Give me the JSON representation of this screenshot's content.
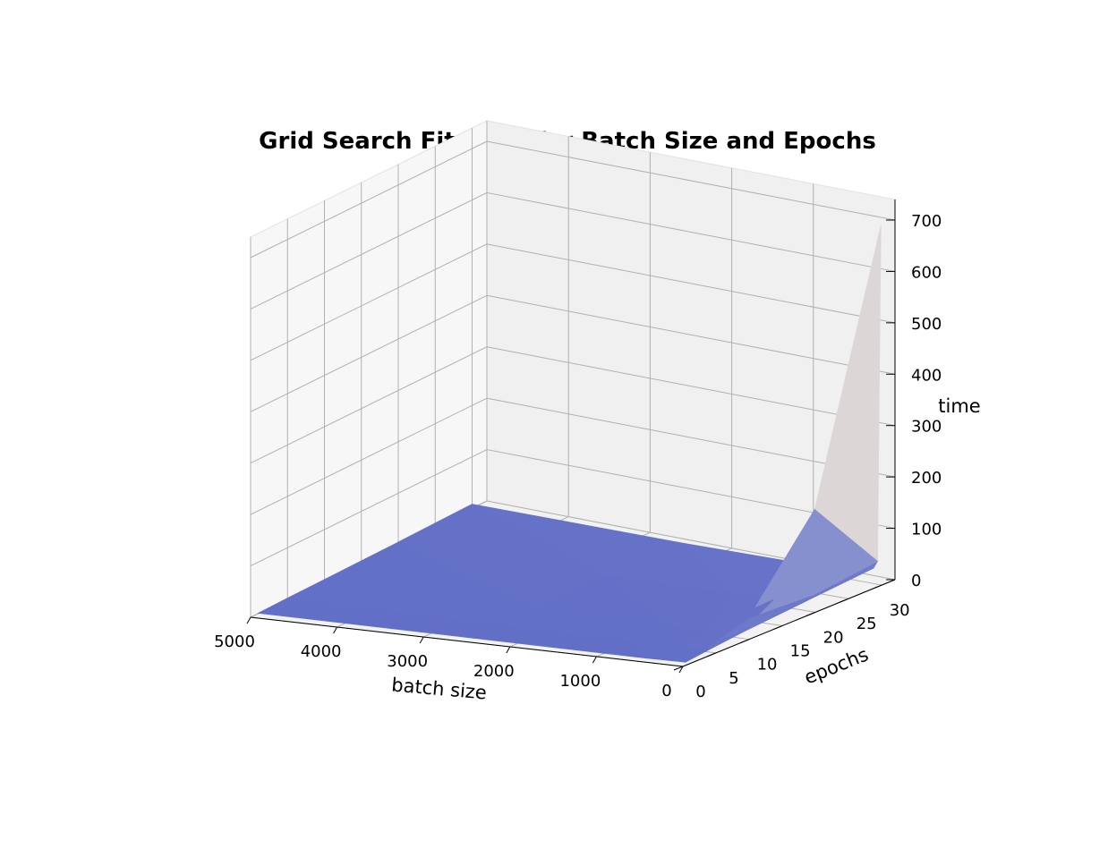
{
  "chart_data": {
    "type": "surface3d",
    "title": "Grid Search Fit Time for Batch Size and Epochs",
    "xlabel": "batch size",
    "ylabel": "epochs",
    "zlabel": "time",
    "x_ticks": [
      "0",
      "1000",
      "2000",
      "3000",
      "4000",
      "5000"
    ],
    "y_ticks": [
      "0",
      "5",
      "10",
      "15",
      "20",
      "25",
      "30"
    ],
    "z_ticks": [
      "0",
      "100",
      "200",
      "300",
      "400",
      "500",
      "600",
      "700"
    ],
    "xlim": [
      0,
      5000
    ],
    "ylim": [
      0,
      32
    ],
    "zlim": [
      0,
      740
    ],
    "colormap": "coolwarm",
    "colors": {
      "low": "#3b4cc0",
      "high": "#b40426"
    },
    "grid": true,
    "batch_size": [
      10,
      50,
      100,
      500,
      1000,
      2500,
      5000
    ],
    "epochs": [
      1,
      5,
      10,
      20,
      30
    ],
    "time": [
      [
        7,
        20,
        40,
        200,
        700
      ],
      [
        2,
        8,
        15,
        30,
        45
      ],
      [
        2,
        5,
        10,
        20,
        30
      ],
      [
        1,
        3,
        6,
        12,
        18
      ],
      [
        1,
        2,
        4,
        9,
        13
      ],
      [
        1,
        2,
        3,
        6,
        9
      ],
      [
        1,
        2,
        3,
        5,
        8
      ]
    ]
  }
}
